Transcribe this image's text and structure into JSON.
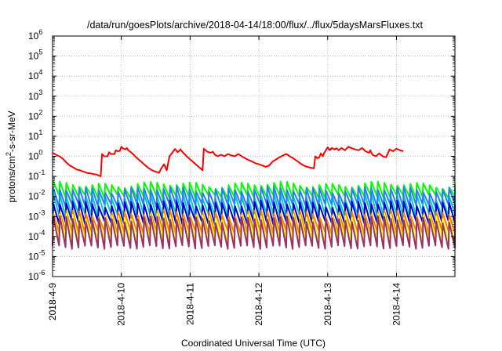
{
  "chart_data": {
    "type": "line",
    "title": "/data/run/goesPlots/archive/2018-04-14/18:00/flux/../flux/5daysMarsFluxes.txt",
    "xlabel": "Coordinated Universal Time (UTC)",
    "ylabel_parts": [
      "protons/cm",
      "2",
      "-s-sr-MeV"
    ],
    "y_scale": "log",
    "ylim_exp": [
      -6,
      6
    ],
    "y_ticks": [
      {
        "base": "10",
        "exp": "-6"
      },
      {
        "base": "10",
        "exp": "-5"
      },
      {
        "base": "10",
        "exp": "-4"
      },
      {
        "base": "10",
        "exp": "-3"
      },
      {
        "base": "10",
        "exp": "-2"
      },
      {
        "base": "10",
        "exp": "-1"
      },
      {
        "base": "10",
        "exp": "0"
      },
      {
        "base": "10",
        "exp": "1"
      },
      {
        "base": "10",
        "exp": "2"
      },
      {
        "base": "10",
        "exp": "3"
      },
      {
        "base": "10",
        "exp": "4"
      },
      {
        "base": "10",
        "exp": "5"
      },
      {
        "base": "10",
        "exp": "6"
      }
    ],
    "x_ticks": [
      "2018-4-9",
      "2018-4-10",
      "2018-4-11",
      "2018-4-12",
      "2018-4-13",
      "2018-4-14"
    ],
    "x_range_days": [
      0,
      5.85
    ],
    "grid": true,
    "series": [
      {
        "color": "#ff0000",
        "values": [
          [
            0.0,
            1.5
          ],
          [
            0.05,
            1.2
          ],
          [
            0.1,
            1.0
          ],
          [
            0.15,
            0.75
          ],
          [
            0.2,
            0.5
          ],
          [
            0.25,
            0.35
          ],
          [
            0.3,
            0.28
          ],
          [
            0.35,
            0.22
          ],
          [
            0.4,
            0.2
          ],
          [
            0.45,
            0.17
          ],
          [
            0.5,
            0.15
          ],
          [
            0.55,
            0.14
          ],
          [
            0.6,
            0.13
          ],
          [
            0.65,
            0.12
          ],
          [
            0.7,
            0.1
          ],
          [
            0.72,
            1.3
          ],
          [
            0.75,
            1.0
          ],
          [
            0.8,
            1.0
          ],
          [
            0.82,
            1.6
          ],
          [
            0.85,
            1.3
          ],
          [
            0.9,
            1.3
          ],
          [
            0.92,
            2.0
          ],
          [
            0.95,
            1.8
          ],
          [
            0.98,
            1.9
          ],
          [
            1.0,
            3.0
          ],
          [
            1.03,
            2.4
          ],
          [
            1.06,
            2.2
          ],
          [
            1.08,
            2.6
          ],
          [
            1.1,
            2.0
          ],
          [
            1.15,
            1.5
          ],
          [
            1.2,
            1.0
          ],
          [
            1.25,
            0.7
          ],
          [
            1.3,
            0.5
          ],
          [
            1.35,
            0.35
          ],
          [
            1.4,
            0.25
          ],
          [
            1.45,
            0.2
          ],
          [
            1.5,
            0.17
          ],
          [
            1.55,
            0.15
          ],
          [
            1.58,
            0.25
          ],
          [
            1.62,
            0.4
          ],
          [
            1.66,
            0.2
          ],
          [
            1.7,
            1.0
          ],
          [
            1.74,
            1.5
          ],
          [
            1.78,
            2.3
          ],
          [
            1.82,
            1.6
          ],
          [
            1.86,
            2.2
          ],
          [
            1.9,
            1.5
          ],
          [
            1.95,
            1.0
          ],
          [
            2.0,
            0.7
          ],
          [
            2.05,
            0.5
          ],
          [
            2.1,
            0.35
          ],
          [
            2.15,
            0.25
          ],
          [
            2.18,
            0.2
          ],
          [
            2.2,
            2.4
          ],
          [
            2.25,
            1.7
          ],
          [
            2.3,
            1.5
          ],
          [
            2.33,
            1.7
          ],
          [
            2.36,
            1.2
          ],
          [
            2.4,
            1.0
          ],
          [
            2.45,
            1.2
          ],
          [
            2.5,
            1.0
          ],
          [
            2.55,
            1.3
          ],
          [
            2.6,
            1.1
          ],
          [
            2.65,
            1.0
          ],
          [
            2.7,
            1.3
          ],
          [
            2.75,
            1.0
          ],
          [
            2.8,
            0.8
          ],
          [
            2.85,
            0.65
          ],
          [
            2.9,
            0.55
          ],
          [
            2.95,
            0.45
          ],
          [
            3.0,
            0.4
          ],
          [
            3.05,
            0.35
          ],
          [
            3.1,
            0.3
          ],
          [
            3.15,
            0.35
          ],
          [
            3.2,
            0.55
          ],
          [
            3.25,
            0.7
          ],
          [
            3.3,
            0.9
          ],
          [
            3.35,
            1.1
          ],
          [
            3.4,
            1.3
          ],
          [
            3.45,
            1.0
          ],
          [
            3.5,
            0.8
          ],
          [
            3.55,
            0.6
          ],
          [
            3.6,
            0.45
          ],
          [
            3.65,
            0.35
          ],
          [
            3.7,
            0.3
          ],
          [
            3.75,
            0.27
          ],
          [
            3.8,
            0.25
          ],
          [
            3.82,
            1.0
          ],
          [
            3.85,
            0.8
          ],
          [
            3.88,
            0.9
          ],
          [
            3.9,
            1.4
          ],
          [
            3.93,
            1.0
          ],
          [
            3.95,
            1.5
          ],
          [
            4.0,
            2.8
          ],
          [
            4.03,
            2.0
          ],
          [
            4.06,
            2.6
          ],
          [
            4.1,
            2.2
          ],
          [
            4.13,
            2.5
          ],
          [
            4.16,
            2.0
          ],
          [
            4.2,
            2.6
          ],
          [
            4.25,
            2.0
          ],
          [
            4.3,
            3.0
          ],
          [
            4.35,
            2.5
          ],
          [
            4.4,
            2.2
          ],
          [
            4.45,
            2.0
          ],
          [
            4.5,
            2.6
          ],
          [
            4.55,
            1.8
          ],
          [
            4.6,
            1.5
          ],
          [
            4.62,
            2.0
          ],
          [
            4.65,
            1.2
          ],
          [
            4.7,
            1.0
          ],
          [
            4.75,
            1.4
          ],
          [
            4.8,
            1.0
          ],
          [
            4.85,
            0.9
          ],
          [
            4.9,
            2.2
          ],
          [
            4.95,
            1.8
          ],
          [
            5.0,
            2.4
          ],
          [
            5.05,
            2.0
          ],
          [
            5.1,
            1.8
          ]
        ]
      },
      {
        "color": "#00ff00",
        "base": 0.02,
        "factor": 2.0,
        "teeth": 62
      },
      {
        "color": "#00cccc",
        "base": 0.0035,
        "factor": 3.0,
        "teeth": 62
      },
      {
        "color": "#2a7bff",
        "base": 0.009,
        "factor": 2.5,
        "teeth": 62
      },
      {
        "color": "#0000cc",
        "base": 0.0015,
        "factor": 3.0,
        "teeth": 62
      },
      {
        "color": "#ff8000",
        "base": 0.0005,
        "factor": 3.0,
        "teeth": 62
      },
      {
        "color": "#ffff00",
        "base": 0.00025,
        "factor": 4.0,
        "teeth": 62
      },
      {
        "color": "#993366",
        "base": 0.00015,
        "factor": 5.0,
        "teeth": 62
      }
    ]
  }
}
